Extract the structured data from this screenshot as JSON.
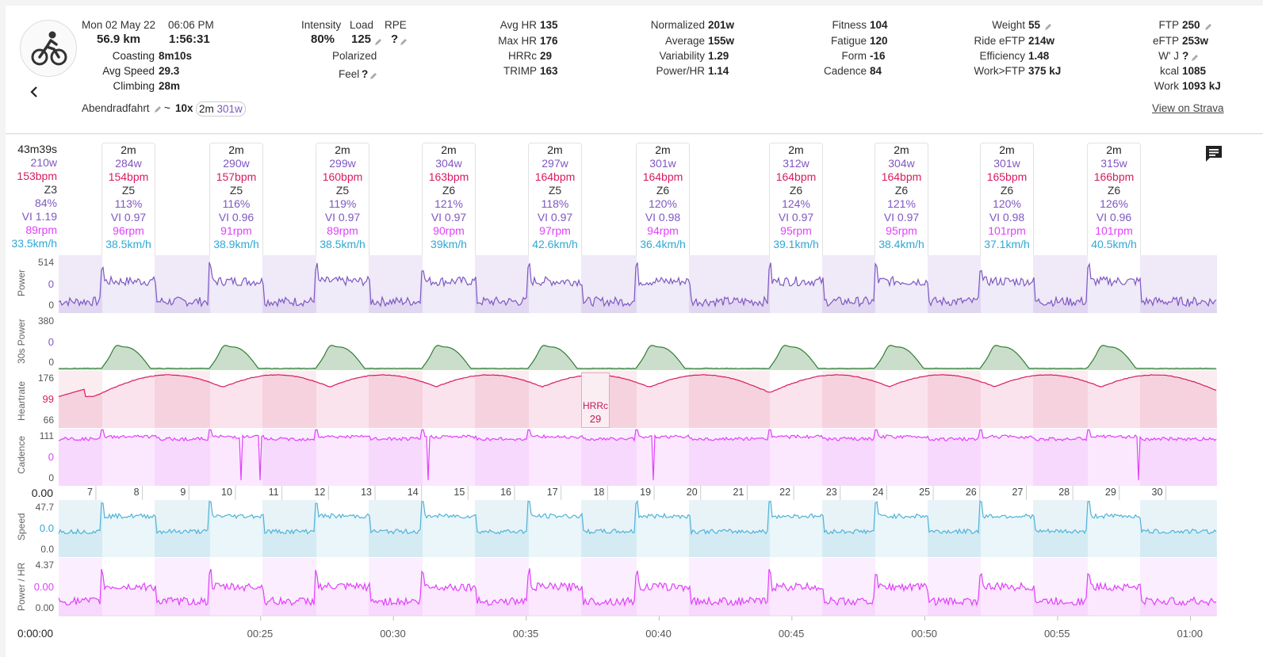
{
  "header": {
    "date": "Mon 02 May 22",
    "time": "06:06 PM",
    "distance": "56.9 km",
    "duration": "1:56:31",
    "coasting_label": "Coasting",
    "coasting": "8m10s",
    "avg_speed_label": "Avg Speed",
    "avg_speed": "29.3",
    "climbing_label": "Climbing",
    "climbing": "28m",
    "name": "Abendradfahrt",
    "tilde": "~",
    "intervals": "10x",
    "chip_dur": "2m",
    "chip_power": "301w"
  },
  "col2": {
    "intensity_label": "Intensity",
    "intensity": "80%",
    "load_label": "Load",
    "load": "125",
    "rpe_label": "RPE",
    "rpe": "?",
    "polarized": "Polarized",
    "feel_label": "Feel",
    "feel": "?"
  },
  "col3": {
    "avg_hr_label": "Avg HR",
    "avg_hr": "135",
    "max_hr_label": "Max HR",
    "max_hr": "176",
    "hrrc_label": "HRRc",
    "hrrc": "29",
    "trimp_label": "TRIMP",
    "trimp": "163"
  },
  "col4": {
    "normalized_label": "Normalized",
    "normalized": "201w",
    "average_label": "Average",
    "average": "155w",
    "variability_label": "Variability",
    "variability": "1.29",
    "power_hr_label": "Power/HR",
    "power_hr": "1.14"
  },
  "col5": {
    "fitness_label": "Fitness",
    "fitness": "104",
    "fatigue_label": "Fatigue",
    "fatigue": "120",
    "form_label": "Form",
    "form": "-16",
    "cadence_label": "Cadence",
    "cadence": "84"
  },
  "col6": {
    "weight_label": "Weight",
    "weight": "55",
    "ride_eftp_label": "Ride eFTP",
    "ride_eftp": "214w",
    "efficiency_label": "Efficiency",
    "efficiency": "1.48",
    "work_ftp_label": "Work>FTP",
    "work_ftp": "375 kJ"
  },
  "col7": {
    "ftp_label": "FTP",
    "ftp": "250",
    "eftp_label": "eFTP",
    "eftp": "253w",
    "wprime_label": "W' J",
    "wprime": "?",
    "kcal_label": "kcal",
    "kcal": "1085",
    "work_label": "Work",
    "work": "1093 kJ",
    "strava_link": "View on Strava"
  },
  "icons": {
    "avatar": "bike-icon",
    "back": "chevron-left-icon",
    "comment": "comment-icon",
    "edit": "pencil-icon"
  },
  "colors": {
    "power": "#7e57c2",
    "hr": "#d81b60",
    "cadence": "#e040fb",
    "speed": "#4fb3d9",
    "zone": "#333",
    "pct": "#7e57c2",
    "vi": "#7e57c2",
    "rpm": "#e040fb",
    "kmh": "#2fa8d5"
  },
  "overall_lap": [
    "43m39s",
    "210w",
    "153bpm",
    "Z3",
    "84%",
    "VI 1.19",
    "89rpm",
    "33.5km/h"
  ],
  "laps": [
    [
      "2m",
      "284w",
      "154bpm",
      "Z5",
      "113%",
      "VI 0.97",
      "96rpm",
      "38.5km/h"
    ],
    [
      "2m",
      "290w",
      "157bpm",
      "Z5",
      "116%",
      "VI 0.96",
      "91rpm",
      "38.9km/h"
    ],
    [
      "2m",
      "299w",
      "160bpm",
      "Z5",
      "119%",
      "VI 0.97",
      "89rpm",
      "38.5km/h"
    ],
    [
      "2m",
      "304w",
      "163bpm",
      "Z6",
      "121%",
      "VI 0.97",
      "90rpm",
      "39km/h"
    ],
    [
      "2m",
      "297w",
      "164bpm",
      "Z5",
      "118%",
      "VI 0.97",
      "97rpm",
      "42.6km/h"
    ],
    [
      "2m",
      "301w",
      "164bpm",
      "Z6",
      "120%",
      "VI 0.98",
      "94rpm",
      "36.4km/h"
    ],
    [
      "2m",
      "312w",
      "164bpm",
      "Z6",
      "124%",
      "VI 0.97",
      "95rpm",
      "39.1km/h"
    ],
    [
      "2m",
      "304w",
      "164bpm",
      "Z6",
      "121%",
      "VI 0.97",
      "95rpm",
      "38.4km/h"
    ],
    [
      "2m",
      "301w",
      "165bpm",
      "Z6",
      "120%",
      "VI 0.98",
      "101rpm",
      "37.1km/h"
    ],
    [
      "2m",
      "315w",
      "166bpm",
      "Z6",
      "126%",
      "VI 0.96",
      "101rpm",
      "40.5km/h"
    ]
  ],
  "charts": {
    "power": {
      "label": "Power",
      "ticks": [
        "514",
        "0",
        "0"
      ]
    },
    "p30": {
      "label": "30s Power",
      "ticks": [
        "380",
        "0",
        "0"
      ]
    },
    "hr": {
      "label": "Heartrate",
      "ticks": [
        "176",
        "99",
        "66"
      ]
    },
    "cad": {
      "label": "Cadence",
      "ticks": [
        "111",
        "0",
        "0"
      ]
    },
    "speed": {
      "label": "Speed",
      "ticks": [
        "47.7",
        "0.0",
        "0.0"
      ]
    },
    "phr": {
      "label": "Power / HR",
      "ticks": [
        "4.37",
        "0.00",
        "0.00"
      ]
    }
  },
  "hrrc_box": {
    "label": "HRRc",
    "value": "29"
  },
  "km_axis": {
    "start": "0.00",
    "ticks": [
      "7",
      "8",
      "9",
      "10",
      "11",
      "12",
      "13",
      "14",
      "15",
      "16",
      "17",
      "18",
      "19",
      "20",
      "21",
      "22",
      "23",
      "24",
      "25",
      "26",
      "27",
      "28",
      "29",
      "30"
    ]
  },
  "time_axis": {
    "start": "0:00:00",
    "ticks": [
      "00:25",
      "00:30",
      "00:35",
      "00:40",
      "00:45",
      "00:50",
      "00:55",
      "01:00"
    ]
  }
}
